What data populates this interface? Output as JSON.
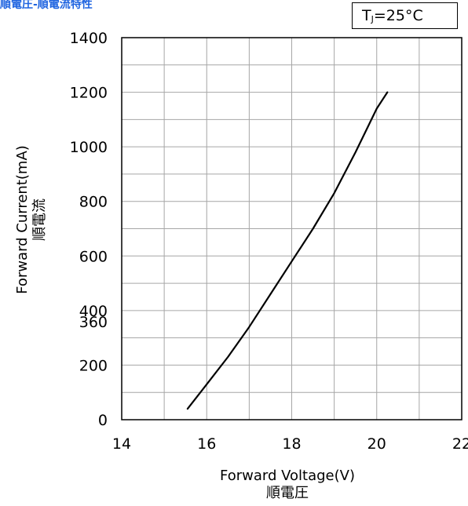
{
  "caption": "順電圧-順電流特性",
  "condition": {
    "symbol": "T",
    "subscript": "J",
    "value": " =25°C"
  },
  "chart_data": {
    "type": "line",
    "title": "",
    "xlabel": "Forward Voltage(V)",
    "xlabel_sub": "順電圧",
    "ylabel": "Forward Current(mA)",
    "ylabel_sub": "順電流",
    "xlim": [
      14,
      22
    ],
    "ylim": [
      0,
      1400
    ],
    "xticks": [
      14,
      16,
      18,
      20,
      22
    ],
    "yticks": [
      0,
      200,
      360,
      400,
      600,
      800,
      1000,
      1200,
      1400
    ],
    "grid": true,
    "series": [
      {
        "x": [
          15.55,
          16.0,
          16.5,
          17.0,
          17.5,
          18.0,
          18.5,
          19.0,
          19.5,
          20.0,
          20.25
        ],
        "y": [
          40,
          130,
          230,
          340,
          460,
          580,
          700,
          830,
          980,
          1140,
          1200
        ]
      }
    ]
  }
}
